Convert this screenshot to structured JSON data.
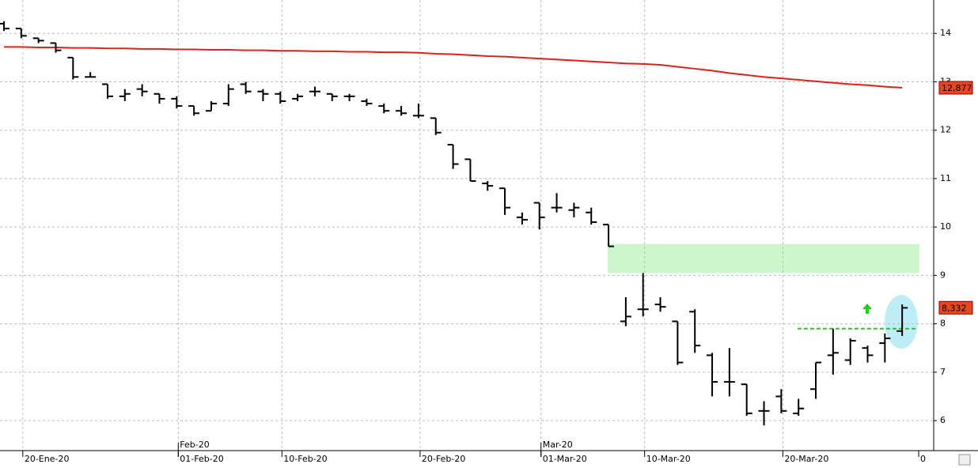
{
  "chart_data": {
    "type": "ohlc",
    "categories": [
      null,
      "20-Ene-20",
      null,
      null,
      null,
      null,
      null,
      null,
      null,
      null,
      "01-Feb-20",
      null,
      null,
      null,
      null,
      null,
      "10-Feb-20",
      null,
      null,
      null,
      null,
      null,
      null,
      null,
      "20-Feb-20",
      null,
      null,
      null,
      null,
      null,
      null,
      "01-Mar-20",
      null,
      null,
      null,
      null,
      null,
      "10-Mar-20",
      null,
      null,
      null,
      null,
      null,
      null,
      null,
      "20-Mar-20",
      null,
      null,
      null,
      null,
      null,
      null,
      null
    ],
    "month_labels": [
      {
        "index": 10,
        "label": "Feb-20"
      },
      {
        "index": 31,
        "label": "Mar-20"
      }
    ],
    "edge_label": "0",
    "ohlc": {
      "open": [
        14.2,
        14.1,
        13.9,
        13.8,
        13.5,
        13.1,
        12.95,
        12.7,
        12.85,
        12.75,
        12.65,
        12.5,
        12.4,
        12.55,
        12.95,
        12.8,
        12.75,
        12.65,
        12.8,
        12.75,
        12.7,
        12.6,
        12.5,
        12.4,
        12.3,
        12.25,
        11.7,
        11.4,
        10.9,
        10.8,
        10.2,
        10.5,
        10.4,
        10.35,
        10.3,
        10.05,
        8.05,
        8.3,
        8.4,
        8.05,
        8.25,
        7.35,
        6.8,
        6.75,
        6.2,
        6.5,
        6.15,
        6.65,
        7.35,
        7.25,
        7.5,
        7.6,
        7.85
      ],
      "high": [
        14.25,
        14.1,
        13.9,
        13.8,
        13.5,
        13.2,
        12.95,
        12.85,
        12.95,
        12.75,
        12.7,
        12.5,
        12.6,
        12.95,
        13.0,
        12.85,
        12.8,
        12.75,
        12.9,
        12.75,
        12.75,
        12.65,
        12.55,
        12.5,
        12.55,
        12.25,
        11.7,
        11.4,
        10.95,
        10.8,
        10.3,
        10.5,
        10.7,
        10.5,
        10.4,
        10.05,
        8.55,
        9.05,
        8.55,
        8.05,
        8.3,
        7.4,
        7.5,
        6.75,
        6.4,
        6.65,
        6.45,
        7.2,
        7.9,
        7.7,
        7.55,
        7.8,
        8.4
      ],
      "low": [
        14.05,
        13.9,
        13.8,
        13.6,
        13.05,
        13.1,
        12.65,
        12.6,
        12.7,
        12.55,
        12.45,
        12.3,
        12.4,
        12.5,
        12.75,
        12.6,
        12.55,
        12.6,
        12.7,
        12.6,
        12.6,
        12.5,
        12.35,
        12.3,
        12.25,
        11.9,
        11.2,
        10.95,
        10.75,
        10.25,
        10.05,
        9.95,
        10.3,
        10.2,
        10.05,
        9.6,
        7.95,
        8.15,
        8.25,
        7.15,
        7.4,
        6.5,
        6.5,
        6.1,
        5.9,
        6.15,
        6.1,
        6.45,
        6.95,
        7.15,
        7.2,
        7.2,
        7.75
      ],
      "close": [
        14.1,
        13.95,
        13.85,
        13.65,
        13.1,
        13.1,
        12.7,
        12.75,
        12.8,
        12.65,
        12.5,
        12.35,
        12.55,
        12.85,
        12.8,
        12.75,
        12.6,
        12.7,
        12.8,
        12.7,
        12.7,
        12.55,
        12.4,
        12.35,
        12.3,
        11.95,
        11.3,
        10.95,
        10.85,
        10.4,
        10.15,
        10.2,
        10.4,
        10.4,
        10.1,
        9.6,
        8.15,
        8.3,
        8.35,
        7.2,
        7.55,
        6.8,
        6.8,
        6.15,
        6.2,
        6.2,
        6.25,
        7.2,
        7.4,
        7.65,
        7.35,
        7.7,
        8.33
      ],
      "color": "#000000"
    },
    "moving_average": {
      "color": "#e0201b",
      "values": [
        13.72,
        13.72,
        13.71,
        13.71,
        13.7,
        13.7,
        13.69,
        13.69,
        13.68,
        13.68,
        13.67,
        13.67,
        13.66,
        13.66,
        13.65,
        13.65,
        13.64,
        13.64,
        13.63,
        13.63,
        13.62,
        13.62,
        13.61,
        13.61,
        13.6,
        13.58,
        13.57,
        13.55,
        13.53,
        13.52,
        13.5,
        13.48,
        13.46,
        13.44,
        13.42,
        13.4,
        13.38,
        13.37,
        13.35,
        13.31,
        13.27,
        13.23,
        13.18,
        13.14,
        13.1,
        13.07,
        13.04,
        13.01,
        12.98,
        12.95,
        12.93,
        12.9,
        12.877
      ]
    },
    "last_labels": [
      {
        "value": 12.877,
        "label": "12,877",
        "color": "#e8461c"
      },
      {
        "value": 8.332,
        "label": "8,332",
        "color": "#e8461c"
      }
    ],
    "zone": {
      "ylim": [
        9.05,
        9.65
      ],
      "color": "#ccf7cc"
    },
    "level": {
      "value": 7.9,
      "color": "#22cc22"
    },
    "ylim": [
      5.38,
      14.69
    ],
    "yticks": [
      6,
      7,
      8,
      9,
      10,
      11,
      12,
      13,
      14
    ],
    "grid": true
  }
}
